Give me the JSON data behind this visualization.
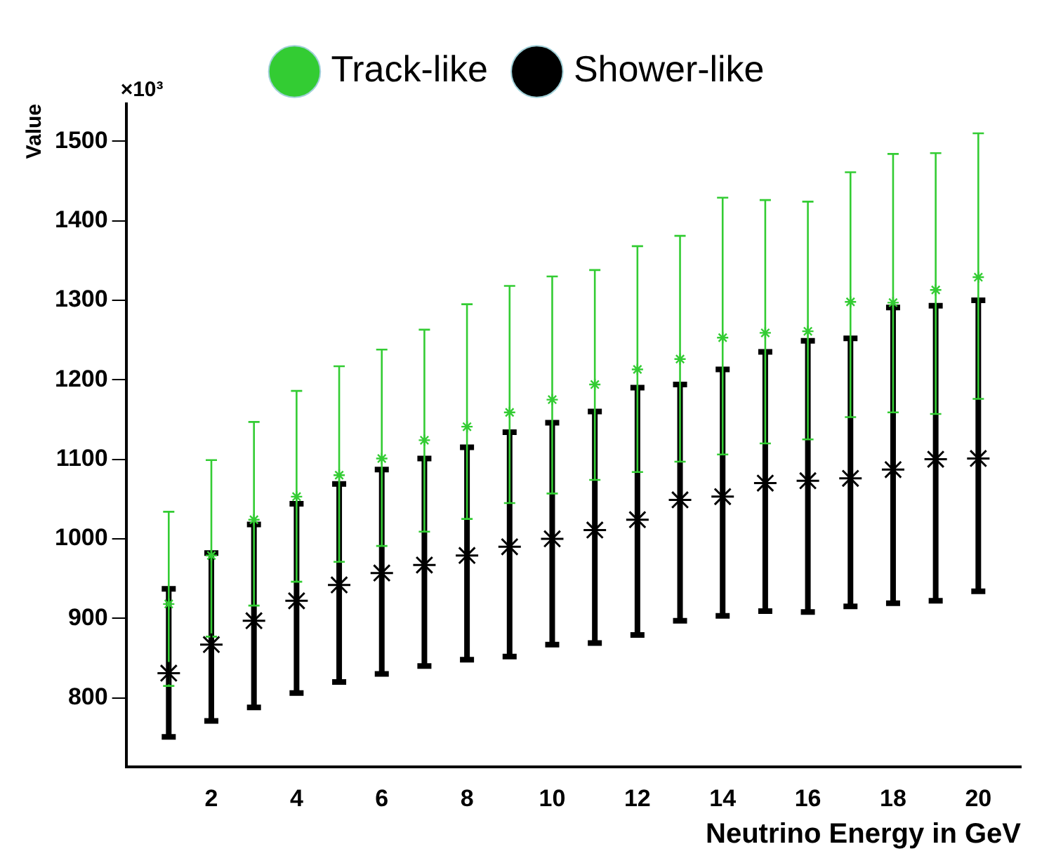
{
  "chart_data": {
    "type": "scatter",
    "xlabel": "Neutrino Energy in GeV",
    "ylabel": "Value",
    "annotations": [
      "×10³"
    ],
    "x": [
      1,
      2,
      3,
      4,
      5,
      6,
      7,
      8,
      9,
      10,
      11,
      12,
      13,
      14,
      15,
      16,
      17,
      18,
      19,
      20
    ],
    "series": [
      {
        "name": "Track-like",
        "color": "#33cc33",
        "values": [
          918,
          979,
          1024,
          1053,
          1080,
          1101,
          1124,
          1141,
          1159,
          1175,
          1194,
          1213,
          1226,
          1253,
          1259,
          1261,
          1298,
          1297,
          1313,
          1329
        ],
        "errors": [
          [
            815,
            1034
          ],
          [
            877,
            1099
          ],
          [
            916,
            1147
          ],
          [
            946,
            1186
          ],
          [
            971,
            1217
          ],
          [
            991,
            1238
          ],
          [
            1009,
            1263
          ],
          [
            1025,
            1295
          ],
          [
            1045,
            1318
          ],
          [
            1057,
            1330
          ],
          [
            1074,
            1338
          ],
          [
            1084,
            1368
          ],
          [
            1097,
            1381
          ],
          [
            1106,
            1429
          ],
          [
            1120,
            1426
          ],
          [
            1125,
            1424
          ],
          [
            1153,
            1461
          ],
          [
            1159,
            1484
          ],
          [
            1157,
            1485
          ],
          [
            1176,
            1510
          ]
        ]
      },
      {
        "name": "Shower-like",
        "color": "#000000",
        "values": [
          831,
          867,
          897,
          922,
          942,
          957,
          967,
          979,
          990,
          1000,
          1011,
          1024,
          1049,
          1053,
          1070,
          1073,
          1076,
          1087,
          1100,
          1101
        ],
        "errors": [
          [
            751,
            937
          ],
          [
            771,
            982
          ],
          [
            788,
            1018
          ],
          [
            806,
            1044
          ],
          [
            820,
            1069
          ],
          [
            830,
            1087
          ],
          [
            840,
            1101
          ],
          [
            848,
            1115
          ],
          [
            852,
            1134
          ],
          [
            867,
            1146
          ],
          [
            869,
            1160
          ],
          [
            879,
            1190
          ],
          [
            897,
            1194
          ],
          [
            903,
            1213
          ],
          [
            909,
            1235
          ],
          [
            908,
            1249
          ],
          [
            915,
            1252
          ],
          [
            919,
            1291
          ],
          [
            922,
            1293
          ],
          [
            934,
            1300
          ]
        ]
      }
    ],
    "xlim": [
      0,
      21
    ],
    "xticks": [
      2,
      4,
      6,
      8,
      10,
      12,
      14,
      16,
      18,
      20
    ],
    "ylim": [
      713,
      1547
    ],
    "yticks": [
      800,
      900,
      1000,
      1100,
      1200,
      1300,
      1400,
      1500
    ],
    "marker": "cross",
    "legend": "top",
    "grid": false
  }
}
